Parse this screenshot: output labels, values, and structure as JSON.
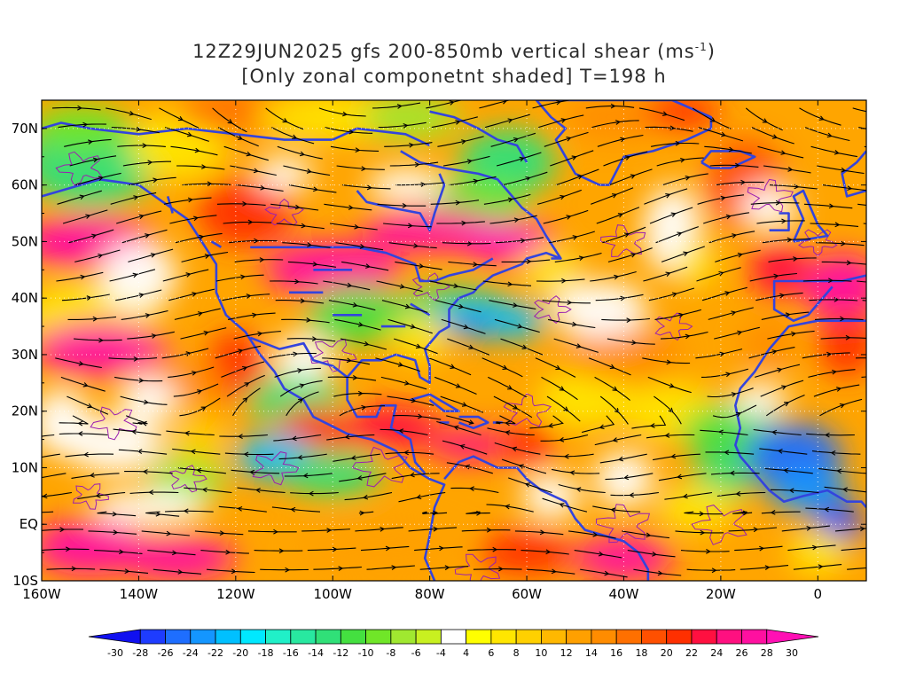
{
  "title": {
    "line1_prefix": "12Z29JUN2025 gfs 200-850mb vertical shear (ms",
    "line1_sup": "-1",
    "line1_suffix": ")",
    "line2": "[Only zonal componetnt shaded] T=198 h"
  },
  "map": {
    "lat_range": [
      -10,
      75
    ],
    "lon_range": [
      -160,
      10
    ],
    "lat_tick_labels": [
      {
        "lat": 70,
        "label": "70N"
      },
      {
        "lat": 60,
        "label": "60N"
      },
      {
        "lat": 50,
        "label": "50N"
      },
      {
        "lat": 40,
        "label": "40N"
      },
      {
        "lat": 30,
        "label": "30N"
      },
      {
        "lat": 20,
        "label": "20N"
      },
      {
        "lat": 10,
        "label": "10N"
      },
      {
        "lat": 0,
        "label": "EQ"
      },
      {
        "lat": -10,
        "label": "10S"
      }
    ],
    "lon_tick_labels": [
      {
        "lon": -160,
        "label": "160W"
      },
      {
        "lon": -140,
        "label": "140W"
      },
      {
        "lon": -120,
        "label": "120W"
      },
      {
        "lon": -100,
        "label": "100W"
      },
      {
        "lon": -80,
        "label": "80W"
      },
      {
        "lon": -60,
        "label": "60W"
      },
      {
        "lon": -40,
        "label": "40W"
      },
      {
        "lon": -20,
        "label": "20W"
      },
      {
        "lon": 0,
        "label": "0"
      }
    ],
    "coastline_color": "#3344dd",
    "contour_color": "#9b1fb0",
    "streamline_color": "#000000"
  },
  "colorbar": {
    "labels": [
      "-30",
      "-28",
      "-26",
      "-24",
      "-22",
      "-20",
      "-18",
      "-16",
      "-14",
      "-12",
      "-10",
      "-8",
      "-6",
      "-4",
      "4",
      "6",
      "8",
      "10",
      "12",
      "14",
      "16",
      "18",
      "20",
      "22",
      "24",
      "26",
      "28",
      "30"
    ],
    "colors": [
      "#1010f0",
      "#1e3cff",
      "#1e6eff",
      "#1496ff",
      "#00c0ff",
      "#00e8ff",
      "#20f0c8",
      "#28e8a0",
      "#30e078",
      "#44e040",
      "#70e628",
      "#a0e830",
      "#c8f020",
      "#ffffff",
      "#ffff00",
      "#ffe600",
      "#ffd000",
      "#ffb800",
      "#ffa000",
      "#ff8c00",
      "#ff7000",
      "#ff5000",
      "#ff3000",
      "#ff1040",
      "#ff1080",
      "#ff10a0",
      "#ff10b4"
    ]
  }
}
